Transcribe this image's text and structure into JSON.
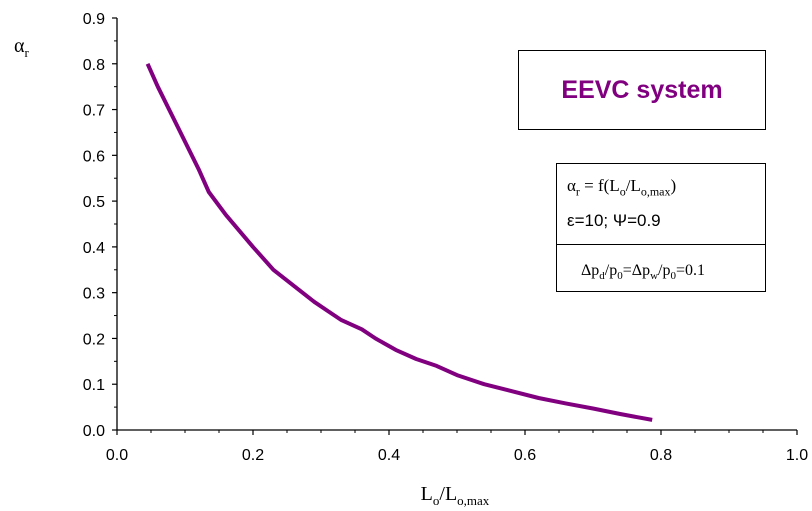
{
  "chart_data": {
    "type": "line",
    "series": [
      {
        "color": "#800080",
        "x": [
          0.045,
          0.06,
          0.08,
          0.1,
          0.12,
          0.135,
          0.16,
          0.2,
          0.23,
          0.26,
          0.29,
          0.31,
          0.33,
          0.36,
          0.38,
          0.41,
          0.44,
          0.47,
          0.5,
          0.54,
          0.58,
          0.62,
          0.66,
          0.7,
          0.74,
          0.787
        ],
        "y": [
          0.8,
          0.75,
          0.69,
          0.63,
          0.57,
          0.52,
          0.47,
          0.4,
          0.35,
          0.315,
          0.28,
          0.26,
          0.24,
          0.22,
          0.2,
          0.175,
          0.155,
          0.14,
          0.12,
          0.1,
          0.085,
          0.07,
          0.058,
          0.047,
          0.035,
          0.022
        ]
      }
    ],
    "xlim": [
      0.0,
      1.0
    ],
    "ylim": [
      0.0,
      0.9
    ],
    "x_ticks": [
      "0.0",
      "0.2",
      "0.4",
      "0.6",
      "0.8",
      "1.0"
    ],
    "y_ticks": [
      "0.0",
      "0.1",
      "0.2",
      "0.3",
      "0.4",
      "0.5",
      "0.6",
      "0.7",
      "0.8",
      "0.9"
    ],
    "xlabel": {
      "base": "L",
      "sub1": "o",
      "mid": "/L",
      "sub2": "o,max"
    },
    "ylabel": {
      "base": "α",
      "sub": "r"
    },
    "grid": false,
    "legend": null
  },
  "annotations": {
    "title": "EEVC system",
    "formula": {
      "alpha": "α",
      "alpha_sub": "r",
      "eq": " = f(L",
      "o_sub": "o",
      "mid": "/L",
      "max_sub": "o,max",
      "close": ")"
    },
    "params": "ε=10; Ψ=0.9",
    "pressure": {
      "p1": "Δp",
      "d": "d",
      "p2": "/p",
      "z1": "0",
      "p3": "=Δp",
      "w": "w",
      "p4": "/p",
      "z2": "0",
      "p5": "=0.1"
    }
  }
}
